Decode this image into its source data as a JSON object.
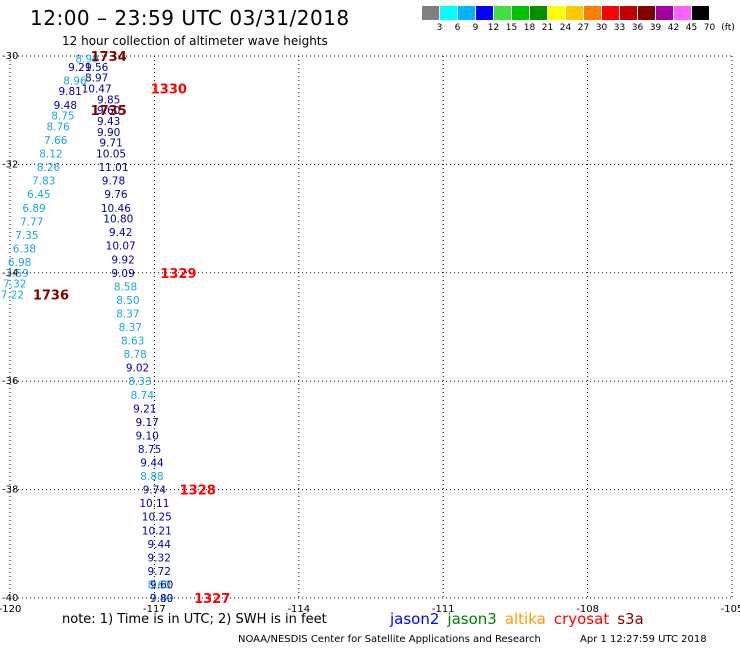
{
  "title": "12:00 – 23:59 UTC 03/31/2018",
  "subtitle": "12 hour collection of altimeter wave heights",
  "legend": {
    "unit": "(ft)",
    "bins": [
      {
        "label": "3",
        "color": "#808080"
      },
      {
        "label": "6",
        "color": "#00ffff"
      },
      {
        "label": "9",
        "color": "#00b4ff"
      },
      {
        "label": "12",
        "color": "#0000ff"
      },
      {
        "label": "15",
        "color": "#40e040"
      },
      {
        "label": "18",
        "color": "#00c000"
      },
      {
        "label": "21",
        "color": "#009000"
      },
      {
        "label": "24",
        "color": "#ffff00"
      },
      {
        "label": "27",
        "color": "#ffc800"
      },
      {
        "label": "30",
        "color": "#ff8000"
      },
      {
        "label": "33",
        "color": "#ff0000"
      },
      {
        "label": "36",
        "color": "#c00000"
      },
      {
        "label": "39",
        "color": "#800000"
      },
      {
        "label": "42",
        "color": "#a000a0"
      },
      {
        "label": "45",
        "color": "#ff60ff"
      },
      {
        "label": "70",
        "color": "#000000"
      }
    ]
  },
  "axes": {
    "lon_ticks": [
      "-120",
      "-117",
      "-114",
      "-111",
      "-108",
      "-105"
    ],
    "lat_ticks": [
      "-30",
      "-32",
      "-34",
      "-36",
      "-38",
      "-40"
    ]
  },
  "chart_data": {
    "type": "scatter",
    "xlim": [
      -120,
      -105
    ],
    "ylim": [
      -40,
      -30
    ],
    "grid": true,
    "series": [
      {
        "color": "#19a7d9",
        "points": [
          {
            "lon": -118.4,
            "lat": -30.05,
            "v": "8.90"
          },
          {
            "lon": -118.65,
            "lat": -30.45,
            "v": "8.96"
          },
          {
            "lon": -118.9,
            "lat": -31.1,
            "v": "8.75"
          },
          {
            "lon": -119.0,
            "lat": -31.3,
            "v": "8.76"
          },
          {
            "lon": -119.05,
            "lat": -31.55,
            "v": "7.66"
          },
          {
            "lon": -119.15,
            "lat": -31.8,
            "v": "8.12"
          },
          {
            "lon": -119.2,
            "lat": -32.05,
            "v": "8.26"
          },
          {
            "lon": -119.3,
            "lat": -32.3,
            "v": "7.83"
          },
          {
            "lon": -119.4,
            "lat": -32.55,
            "v": "6.45"
          },
          {
            "lon": -119.5,
            "lat": -32.8,
            "v": "6.89"
          },
          {
            "lon": -119.55,
            "lat": -33.05,
            "v": "7.77"
          },
          {
            "lon": -119.65,
            "lat": -33.3,
            "v": "7.35"
          },
          {
            "lon": -119.7,
            "lat": -33.55,
            "v": "6.38"
          },
          {
            "lon": -119.8,
            "lat": -33.8,
            "v": "6.98"
          },
          {
            "lon": -119.85,
            "lat": -34.0,
            "v": "7.59"
          },
          {
            "lon": -119.9,
            "lat": -34.2,
            "v": "7.32"
          },
          {
            "lon": -119.95,
            "lat": -34.4,
            "v": "7.22"
          },
          {
            "lon": -117.6,
            "lat": -34.25,
            "v": "8.58"
          },
          {
            "lon": -117.55,
            "lat": -34.5,
            "v": "8.50"
          },
          {
            "lon": -117.55,
            "lat": -34.75,
            "v": "8.37"
          },
          {
            "lon": -117.5,
            "lat": -35.0,
            "v": "8.37"
          },
          {
            "lon": -117.45,
            "lat": -35.25,
            "v": "8.63"
          },
          {
            "lon": -117.4,
            "lat": -35.5,
            "v": "8.78"
          },
          {
            "lon": -117.3,
            "lat": -36.0,
            "v": "8.33"
          },
          {
            "lon": -117.25,
            "lat": -36.25,
            "v": "8.74"
          },
          {
            "lon": -117.05,
            "lat": -37.75,
            "v": "8.88"
          },
          {
            "lon": -116.9,
            "lat": -39.75,
            "v": "8.60"
          },
          {
            "lon": -116.85,
            "lat": -40.0,
            "v": "7.49"
          }
        ]
      },
      {
        "color": "#0000a0",
        "points": [
          {
            "lon": -118.55,
            "lat": -30.2,
            "v": "9.21"
          },
          {
            "lon": -118.2,
            "lat": -30.2,
            "v": "9.56"
          },
          {
            "lon": -118.2,
            "lat": -30.4,
            "v": "8.97"
          },
          {
            "lon": -118.75,
            "lat": -30.65,
            "v": "9.81"
          },
          {
            "lon": -118.2,
            "lat": -30.6,
            "v": "10.47"
          },
          {
            "lon": -117.95,
            "lat": -30.8,
            "v": "9.85"
          },
          {
            "lon": -118.85,
            "lat": -30.9,
            "v": "9.48"
          },
          {
            "lon": -117.95,
            "lat": -31.0,
            "v": "9.60"
          },
          {
            "lon": -117.95,
            "lat": -31.2,
            "v": "9.43"
          },
          {
            "lon": -117.95,
            "lat": -31.4,
            "v": "9.90"
          },
          {
            "lon": -117.9,
            "lat": -31.6,
            "v": "9.71"
          },
          {
            "lon": -117.9,
            "lat": -31.8,
            "v": "10.05"
          },
          {
            "lon": -117.85,
            "lat": -32.05,
            "v": "11.01"
          },
          {
            "lon": -117.85,
            "lat": -32.3,
            "v": "9.78"
          },
          {
            "lon": -117.8,
            "lat": -32.55,
            "v": "9.76"
          },
          {
            "lon": -117.8,
            "lat": -32.8,
            "v": "10.46"
          },
          {
            "lon": -117.75,
            "lat": -33.0,
            "v": "10.80"
          },
          {
            "lon": -117.7,
            "lat": -33.25,
            "v": "9.42"
          },
          {
            "lon": -117.7,
            "lat": -33.5,
            "v": "10.07"
          },
          {
            "lon": -117.65,
            "lat": -33.75,
            "v": "9.92"
          },
          {
            "lon": -117.65,
            "lat": -34.0,
            "v": "9.09"
          },
          {
            "lon": -117.35,
            "lat": -35.75,
            "v": "9.02"
          },
          {
            "lon": -117.2,
            "lat": -36.5,
            "v": "9.21"
          },
          {
            "lon": -117.15,
            "lat": -36.75,
            "v": "9.17"
          },
          {
            "lon": -117.15,
            "lat": -37.0,
            "v": "9.10"
          },
          {
            "lon": -117.1,
            "lat": -37.25,
            "v": "8.75"
          },
          {
            "lon": -117.05,
            "lat": -37.5,
            "v": "9.44"
          },
          {
            "lon": -117.0,
            "lat": -38.0,
            "v": "9.74"
          },
          {
            "lon": -117.0,
            "lat": -38.25,
            "v": "10.11"
          },
          {
            "lon": -116.95,
            "lat": -38.5,
            "v": "10.25"
          },
          {
            "lon": -116.95,
            "lat": -38.75,
            "v": "10.21"
          },
          {
            "lon": -116.9,
            "lat": -39.0,
            "v": "9.44"
          },
          {
            "lon": -116.9,
            "lat": -39.25,
            "v": "9.32"
          },
          {
            "lon": -116.9,
            "lat": -39.5,
            "v": "9.72"
          },
          {
            "lon": -116.85,
            "lat": -39.75,
            "v": "9.60"
          },
          {
            "lon": -116.85,
            "lat": -40.0,
            "v": "9.80"
          }
        ]
      }
    ],
    "time_labels": [
      {
        "lon": -117.95,
        "lat": -30.0,
        "t": "1734",
        "color": "#800000"
      },
      {
        "lon": -116.7,
        "lat": -30.6,
        "t": "1330",
        "color": "#ff0000"
      },
      {
        "lon": -117.95,
        "lat": -31.0,
        "t": "1735",
        "color": "#800000"
      },
      {
        "lon": -116.5,
        "lat": -34.0,
        "t": "1329",
        "color": "#ff0000"
      },
      {
        "lon": -119.15,
        "lat": -34.4,
        "t": "1736",
        "color": "#800000"
      },
      {
        "lon": -116.1,
        "lat": -38.0,
        "t": "1328",
        "color": "#ff0000"
      },
      {
        "lon": -115.8,
        "lat": -40.0,
        "t": "1327",
        "color": "#ff0000"
      }
    ]
  },
  "note": "note: 1) Time is in UTC; 2) SWH is in feet",
  "missions": [
    {
      "name": "jason2",
      "color": "#0000ff"
    },
    {
      "name": "jason3",
      "color": "#008000"
    },
    {
      "name": "altika",
      "color": "#ff9900"
    },
    {
      "name": "cryosat",
      "color": "#ff0000"
    },
    {
      "name": "s3a",
      "color": "#800000"
    }
  ],
  "credit": "NOAA/NESDIS Center for Satellite Applications and Research",
  "credit_date": "Apr  1 12:27:59 UTC 2018"
}
